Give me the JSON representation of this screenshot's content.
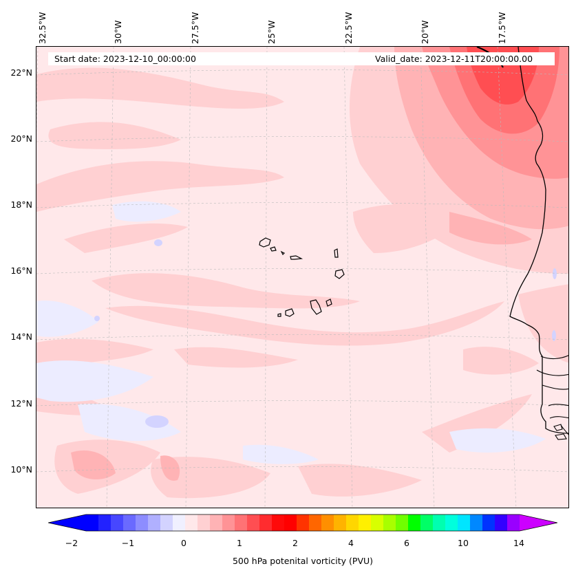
{
  "map": {
    "start_date_label": "Start date: 2023-12-10_00:00:00",
    "valid_date_label": "Valid_date: 2023-12-11T20:00:00.00",
    "longitude_labels": [
      "32.5°W",
      "30°W",
      "27.5°W",
      "25°W",
      "22.5°W",
      "20°W",
      "17.5°W"
    ],
    "latitude_labels": [
      "22°N",
      "20°N",
      "18°N",
      "16°N",
      "14°N",
      "12°N",
      "10°N"
    ],
    "extent": {
      "lon_min": -32.5,
      "lon_max": -15.5,
      "lat_min": 9.0,
      "lat_max": 22.8
    },
    "field": "500 hPa potential vorticity",
    "gridlines": true,
    "features": [
      "coastline-africa",
      "cape-verde-islands"
    ]
  },
  "colorbar": {
    "label": "500 hPa potenital vorticity (PVU)",
    "tick_labels": [
      "−2",
      "−1",
      "0",
      "1",
      "2",
      "4",
      "6",
      "10",
      "14"
    ],
    "extend": "both",
    "colors": [
      "#0000ff",
      "#2222ff",
      "#4747ff",
      "#6a6aff",
      "#8d8dff",
      "#b0b0ff",
      "#d3d3ff",
      "#f0f0ff",
      "#ffe8ea",
      "#ffd0d2",
      "#ffb3b5",
      "#ff9396",
      "#ff7275",
      "#ff4e52",
      "#ff2c2f",
      "#ff0a0a",
      "#ff0000",
      "#ff3300",
      "#ff6600",
      "#ff8f00",
      "#ffb300",
      "#ffd600",
      "#fff000",
      "#d8ff00",
      "#a8ff00",
      "#70ff00",
      "#00ff00",
      "#00ff66",
      "#00ffb0",
      "#00ffdd",
      "#00e5ff",
      "#0088ff",
      "#0033ff",
      "#3300ff",
      "#9900ff"
    ],
    "under_color": "#0000ff",
    "over_color": "#cc00ff"
  }
}
